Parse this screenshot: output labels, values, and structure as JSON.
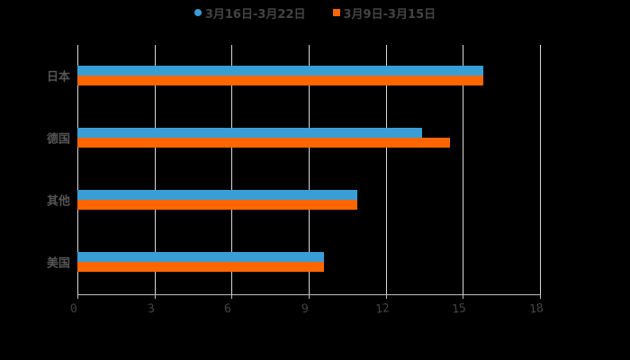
{
  "chart_data": {
    "type": "bar",
    "orientation": "horizontal",
    "title": "",
    "xlabel": "",
    "ylabel": "",
    "categories": [
      "日本",
      "德国",
      "其他",
      "美国"
    ],
    "series": [
      {
        "name": "3月16日-3月22日",
        "color": "#3a9ed6",
        "values": [
          15.8,
          13.4,
          10.9,
          9.6
        ]
      },
      {
        "name": "3月9日-3月15日",
        "color": "#ff6600",
        "values": [
          15.8,
          14.5,
          10.9,
          9.6
        ]
      }
    ],
    "xlim": [
      0,
      18
    ],
    "xticks": [
      "0",
      "3",
      "6",
      "9",
      "12",
      "15",
      "18"
    ],
    "grid": true,
    "legend_position": "top"
  },
  "legend": {
    "series1_label": "3月16日-3月22日",
    "series2_label": "3月9日-3月15日"
  },
  "axis": {
    "x_ticks": [
      "0",
      "3",
      "6",
      "9",
      "12",
      "15",
      "18"
    ],
    "y_labels": [
      "日本",
      "德国",
      "其他",
      "美国"
    ]
  }
}
